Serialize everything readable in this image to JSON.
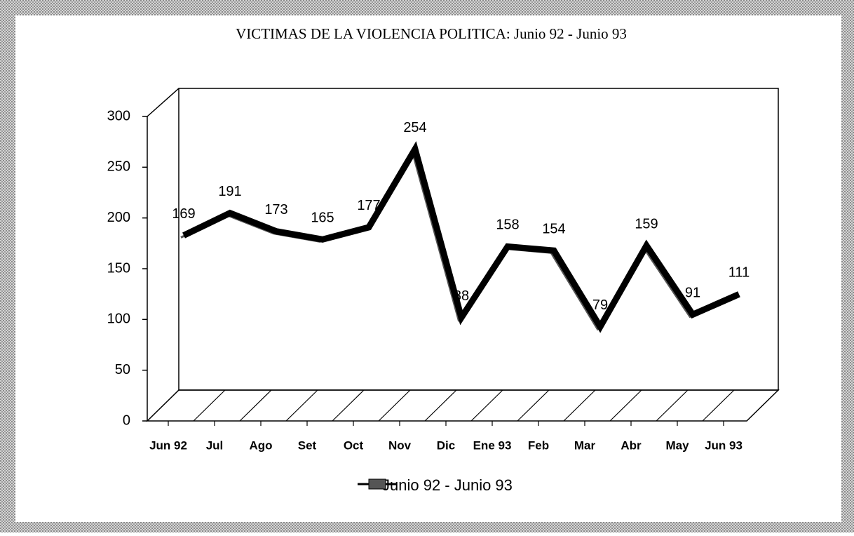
{
  "chart_data": {
    "type": "line",
    "title": "VICTIMAS DE LA VIOLENCIA POLITICA: Junio 92 - Junio 93",
    "categories": [
      "Jun 92",
      "Jul",
      "Ago",
      "Set",
      "Oct",
      "Nov",
      "Dic",
      "Ene 93",
      "Feb",
      "Mar",
      "Abr",
      "May",
      "Jun 93"
    ],
    "series": [
      {
        "name": "Junio 92 - Junio 93",
        "color": "#000000",
        "values": [
          169,
          191,
          173,
          165,
          177,
          254,
          88,
          158,
          154,
          79,
          159,
          91,
          111
        ]
      }
    ],
    "ylim": [
      0,
      300
    ],
    "yticks": [
      0,
      50,
      100,
      150,
      200,
      250,
      300
    ],
    "grid": false
  }
}
